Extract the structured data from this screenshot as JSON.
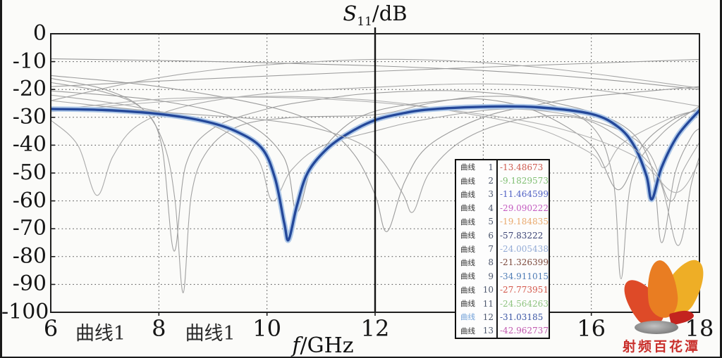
{
  "page": {
    "bg": "#fbfbf9",
    "edge_color": "#1a1a1a"
  },
  "chart_data": {
    "type": "line",
    "title": {
      "main": "S",
      "sub": "11",
      "suffix": "/dB"
    },
    "xlabel": {
      "main": "f",
      "suffix": "/GHz"
    },
    "x_range": [
      6,
      18
    ],
    "y_range": [
      -100,
      0
    ],
    "grid": "dotted",
    "grid_x": [
      8,
      10,
      14,
      16
    ],
    "grid_y": [
      -10,
      -20,
      -30,
      -40,
      -50,
      -60,
      -70,
      -80,
      -90
    ],
    "marker_x": 12,
    "x_ticks": [
      {
        "value": 6,
        "label": "6"
      },
      {
        "value": 8,
        "label": "8"
      },
      {
        "value": 10,
        "label": "10"
      },
      {
        "value": 12,
        "label": "12"
      },
      {
        "value": 16,
        "label": "16"
      },
      {
        "value": 18,
        "label": "18"
      }
    ],
    "y_ticks": [
      {
        "value": 0,
        "label": "0"
      },
      {
        "value": -10,
        "label": "-10"
      },
      {
        "value": -20,
        "label": "-20"
      },
      {
        "value": -30,
        "label": "-30"
      },
      {
        "value": -40,
        "label": "-40"
      },
      {
        "value": -50,
        "label": "-50"
      },
      {
        "value": -60,
        "label": "-60"
      },
      {
        "value": -70,
        "label": "-70"
      },
      {
        "value": -80,
        "label": "-80"
      },
      {
        "value": -90,
        "label": "-90"
      },
      {
        "value": -100,
        "label": "-100"
      }
    ],
    "annotations": [
      {
        "text": "曲线1",
        "x_ghz": 6.92
      },
      {
        "text": "曲线1",
        "x_ghz": 8.95
      }
    ],
    "series": [
      {
        "name": "曲线 1",
        "color": "#9d9d9d",
        "width": 1.1,
        "points": [
          [
            6,
            -19
          ],
          [
            8,
            -17
          ],
          [
            10,
            -15.2
          ],
          [
            12,
            -13.5
          ],
          [
            14,
            -12
          ],
          [
            16,
            -10.6
          ],
          [
            18,
            -9.2
          ]
        ]
      },
      {
        "name": "曲线 2",
        "color": "#a6a6a6",
        "width": 1.1,
        "points": [
          [
            6,
            -24
          ],
          [
            7.5,
            -17.5
          ],
          [
            9,
            -13
          ],
          [
            10.5,
            -10.5
          ],
          [
            12,
            -9.2
          ],
          [
            13.5,
            -9.8
          ],
          [
            15,
            -12
          ],
          [
            16.5,
            -15.5
          ],
          [
            18,
            -19.5
          ]
        ]
      },
      {
        "name": "曲线 3",
        "color": "#999999",
        "width": 1.1,
        "points": [
          [
            6,
            -9
          ],
          [
            8,
            -9.6
          ],
          [
            10,
            -10.4
          ],
          [
            12,
            -11.5
          ],
          [
            14,
            -13.2
          ],
          [
            16,
            -16
          ],
          [
            18,
            -20
          ]
        ]
      },
      {
        "name": "曲线 4",
        "color": "#a2a2a2",
        "width": 1.1,
        "points": [
          [
            6,
            -17.5
          ],
          [
            7,
            -21
          ],
          [
            7.7,
            -27
          ],
          [
            8.1,
            -40
          ],
          [
            8.3,
            -60
          ],
          [
            8.45,
            -93
          ],
          [
            8.6,
            -58
          ],
          [
            8.9,
            -42
          ],
          [
            9.5,
            -33
          ],
          [
            10.5,
            -30
          ],
          [
            12,
            -29.1
          ],
          [
            13,
            -25
          ],
          [
            14,
            -22.5
          ],
          [
            15,
            -24
          ],
          [
            16,
            -33
          ],
          [
            16.4,
            -52
          ],
          [
            16.55,
            -88
          ],
          [
            16.75,
            -52
          ],
          [
            17.3,
            -36
          ],
          [
            18,
            -26
          ]
        ]
      },
      {
        "name": "曲线 5",
        "color": "#aaaaaa",
        "width": 1.1,
        "points": [
          [
            6,
            -31
          ],
          [
            6.5,
            -40
          ],
          [
            6.85,
            -58
          ],
          [
            7.15,
            -44
          ],
          [
            7.6,
            -33
          ],
          [
            8.5,
            -26
          ],
          [
            10,
            -21.5
          ],
          [
            12,
            -19.2
          ],
          [
            14,
            -18
          ],
          [
            16,
            -20
          ],
          [
            18,
            -26
          ]
        ]
      },
      {
        "name": "曲线 6",
        "color": "#9b9b9b",
        "width": 1.1,
        "points": [
          [
            6,
            -15
          ],
          [
            8,
            -19
          ],
          [
            10,
            -26
          ],
          [
            11,
            -33
          ],
          [
            11.6,
            -43
          ],
          [
            12,
            -57.8
          ],
          [
            12.22,
            -71
          ],
          [
            12.55,
            -53
          ],
          [
            13,
            -40
          ],
          [
            14,
            -30
          ],
          [
            15,
            -25.5
          ],
          [
            16,
            -22.5
          ],
          [
            18,
            -19
          ]
        ]
      },
      {
        "name": "曲线 7",
        "color": "#b0b0b0",
        "width": 1.1,
        "points": [
          [
            6,
            -28
          ],
          [
            8,
            -24.5
          ],
          [
            10,
            -22.5
          ],
          [
            12,
            -24
          ],
          [
            13.5,
            -28
          ],
          [
            15,
            -34
          ],
          [
            16,
            -43
          ],
          [
            16.25,
            -48
          ],
          [
            16.6,
            -39
          ],
          [
            17.5,
            -30
          ],
          [
            18,
            -27.5
          ]
        ]
      },
      {
        "name": "曲线 8",
        "color": "#9f9f9f",
        "width": 1.1,
        "points": [
          [
            6,
            -16
          ],
          [
            7,
            -20
          ],
          [
            7.7,
            -27
          ],
          [
            8.05,
            -40
          ],
          [
            8.28,
            -78
          ],
          [
            8.5,
            -47
          ],
          [
            9,
            -34
          ],
          [
            10,
            -27
          ],
          [
            11,
            -23.5
          ],
          [
            12,
            -21.3
          ],
          [
            13.5,
            -20.5
          ],
          [
            15,
            -23.5
          ],
          [
            16.5,
            -32
          ],
          [
            17.1,
            -47
          ],
          [
            17.3,
            -75
          ],
          [
            17.55,
            -50
          ],
          [
            17.85,
            -37
          ],
          [
            18,
            -34
          ]
        ]
      },
      {
        "name": "曲线 9",
        "color": "#a8a8a8",
        "width": 1.1,
        "points": [
          [
            6,
            -22
          ],
          [
            7.5,
            -26
          ],
          [
            9,
            -33
          ],
          [
            9.8,
            -44
          ],
          [
            10.1,
            -60
          ],
          [
            10.45,
            -49
          ],
          [
            11,
            -40.5
          ],
          [
            12,
            -34.9
          ],
          [
            13,
            -30.5
          ],
          [
            14.5,
            -27
          ],
          [
            16,
            -31
          ],
          [
            17,
            -41
          ],
          [
            17.45,
            -60
          ],
          [
            17.7,
            -49
          ],
          [
            18,
            -39
          ]
        ]
      },
      {
        "name": "曲线 10",
        "color": "#9a9a9a",
        "width": 1.1,
        "points": [
          [
            6,
            -20.5
          ],
          [
            8,
            -24
          ],
          [
            9.5,
            -31
          ],
          [
            10.3,
            -44
          ],
          [
            10.55,
            -64
          ],
          [
            10.85,
            -47
          ],
          [
            11.4,
            -34
          ],
          [
            12,
            -27.8
          ],
          [
            13,
            -24.5
          ],
          [
            14,
            -23.5
          ],
          [
            15,
            -28
          ],
          [
            16,
            -40
          ],
          [
            16.5,
            -56
          ],
          [
            16.95,
            -40
          ],
          [
            17.5,
            -31
          ],
          [
            18,
            -27
          ]
        ]
      },
      {
        "name": "曲线 11",
        "color": "#b3b3b3",
        "width": 1.1,
        "points": [
          [
            6,
            -27.5
          ],
          [
            8,
            -23.5
          ],
          [
            10,
            -22.8
          ],
          [
            12,
            -24.6
          ],
          [
            14,
            -29
          ],
          [
            15.5,
            -34.5
          ],
          [
            16.8,
            -44
          ],
          [
            17.55,
            -57
          ],
          [
            18,
            -46
          ]
        ]
      },
      {
        "name": "曲线 12",
        "color": "#24489a",
        "width": 3.4,
        "halo": "#aec8e8",
        "halo_width": 7.5,
        "points": [
          [
            6,
            -27
          ],
          [
            7,
            -27.4
          ],
          [
            8,
            -28.8
          ],
          [
            8.8,
            -31.2
          ],
          [
            9.4,
            -34.8
          ],
          [
            9.9,
            -41
          ],
          [
            10.15,
            -52
          ],
          [
            10.32,
            -68
          ],
          [
            10.4,
            -74
          ],
          [
            10.55,
            -62
          ],
          [
            10.75,
            -50
          ],
          [
            11.1,
            -41.5
          ],
          [
            11.5,
            -35.8
          ],
          [
            12,
            -31
          ],
          [
            12.5,
            -28.6
          ],
          [
            13,
            -27.2
          ],
          [
            14,
            -26.2
          ],
          [
            15,
            -26.4
          ],
          [
            16,
            -28.8
          ],
          [
            16.5,
            -33.5
          ],
          [
            16.8,
            -40.5
          ],
          [
            17.02,
            -51
          ],
          [
            17.12,
            -59.5
          ],
          [
            17.3,
            -48
          ],
          [
            17.6,
            -36.5
          ],
          [
            18,
            -27.5
          ]
        ]
      },
      {
        "name": "曲线 13",
        "color": "#a4a4a4",
        "width": 1.1,
        "points": [
          [
            6,
            -24
          ],
          [
            8,
            -28
          ],
          [
            10,
            -31
          ],
          [
            11.2,
            -35.5
          ],
          [
            12,
            -43
          ],
          [
            12.5,
            -57
          ],
          [
            12.7,
            -64
          ],
          [
            13,
            -50
          ],
          [
            13.6,
            -38.5
          ],
          [
            14.5,
            -31.5
          ],
          [
            15.5,
            -29.5
          ],
          [
            16.3,
            -34.5
          ],
          [
            17.2,
            -50
          ],
          [
            17.6,
            -76
          ],
          [
            17.85,
            -54
          ],
          [
            18,
            -44
          ]
        ]
      }
    ]
  },
  "legend": {
    "rows": [
      {
        "label": "曲线",
        "num": "1",
        "value": "-13.48673",
        "label_color": "#2e2e2e",
        "value_color": "#cf5b50"
      },
      {
        "label": "曲线",
        "num": "2",
        "value": "-9.1829573",
        "label_color": "#2e2e2e",
        "value_color": "#7fbe72"
      },
      {
        "label": "曲线",
        "num": "3",
        "value": "-11.464599",
        "label_color": "#2e2e2e",
        "value_color": "#5061c4"
      },
      {
        "label": "曲线",
        "num": "4",
        "value": "-29.090222",
        "label_color": "#2e2e2e",
        "value_color": "#c45cc0"
      },
      {
        "label": "曲线",
        "num": "5",
        "value": "-19.184835",
        "label_color": "#2e2e2e",
        "value_color": "#e9a86b"
      },
      {
        "label": "曲线",
        "num": "6",
        "value": "-57.83222",
        "label_color": "#2e2e2e",
        "value_color": "#3a4374"
      },
      {
        "label": "曲线",
        "num": "7",
        "value": "-24.005438",
        "label_color": "#2e2e2e",
        "value_color": "#93abd6"
      },
      {
        "label": "曲线",
        "num": "8",
        "value": "-21.326399",
        "label_color": "#2e2e2e",
        "value_color": "#7d4a3d"
      },
      {
        "label": "曲线",
        "num": "9",
        "value": "-34.911015",
        "label_color": "#2e2e2e",
        "value_color": "#4d7bb5"
      },
      {
        "label": "曲线",
        "num": "10",
        "value": "-27.773951",
        "label_color": "#2e2e2e",
        "value_color": "#d4574b"
      },
      {
        "label": "曲线",
        "num": "11",
        "value": "-24.564263",
        "label_color": "#2e2e2e",
        "value_color": "#8ec37f"
      },
      {
        "label": "曲线",
        "num": "12",
        "value": "-31.03185",
        "label_color": "#6f9fd8",
        "value_color": "#3a55a4"
      },
      {
        "label": "曲线",
        "num": "13",
        "value": "-42.962737",
        "label_color": "#2e2e2e",
        "value_color": "#c158ae"
      }
    ]
  },
  "logo": {
    "text": "射频百花潭",
    "text_color": "#c9302c",
    "petal_left_color": "#de4a28",
    "petal_mid_color": "#e97d22",
    "petal_right_color": "#eeae26",
    "drop_color": "#c3241f",
    "stone_color": "#8f8f8f"
  }
}
